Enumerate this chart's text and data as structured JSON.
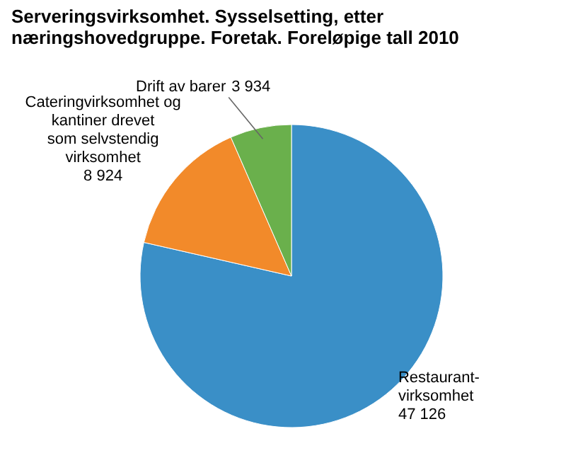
{
  "chart_data": {
    "type": "pie",
    "title": "Serveringsvirksomhet. Sysselsetting, etter næringshovedgruppe. Foretak. Foreløpige tall 2010",
    "categories": [
      "Restaurant-\nvirksomhet",
      "Cateringvirksomhet og\nkantiner drevet\nsom selvstendig\nvirksomhet",
      "Drift av barer"
    ],
    "values": [
      47126,
      8924,
      3934
    ],
    "colors": [
      "#3a8fc7",
      "#f28a2a",
      "#6ab04c"
    ],
    "data_labels": true
  }
}
